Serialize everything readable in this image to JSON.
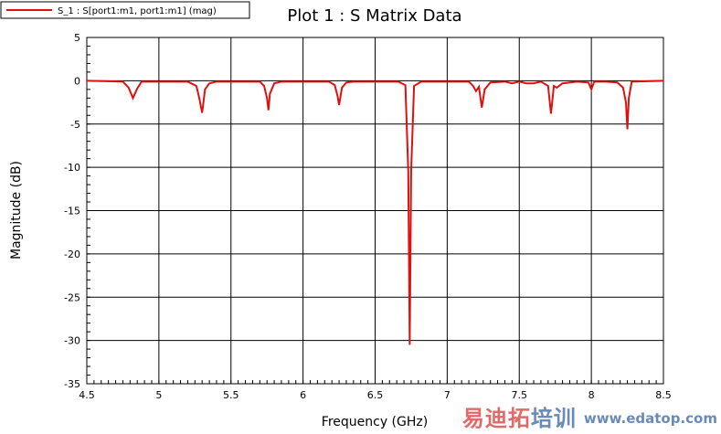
{
  "chart_data": {
    "type": "line",
    "title": "Plot 1 : S Matrix Data",
    "xlabel": "Frequency (GHz)",
    "ylabel": "Magnitude (dB)",
    "xlim": [
      4.5,
      8.5
    ],
    "ylim": [
      -35,
      5
    ],
    "xticks": [
      4.5,
      5,
      5.5,
      6,
      6.5,
      7,
      7.5,
      8,
      8.5
    ],
    "xtick_labels": [
      "4.5",
      "5",
      "5.5",
      "6",
      "6.5",
      "7",
      "7.5",
      "8",
      "8.5"
    ],
    "yticks": [
      5,
      0,
      -5,
      -10,
      -15,
      -20,
      -25,
      -30,
      -35
    ],
    "ytick_labels": [
      "5",
      "0",
      "-5",
      "-10",
      "-15",
      "-20",
      "-25",
      "-30",
      "-35"
    ],
    "grid": true,
    "legend_position": "top-left",
    "series": [
      {
        "name": "S_1 : S[port1:m1, port1:m1] (mag)",
        "color": "#e01010",
        "x": [
          4.5,
          4.75,
          4.79,
          4.82,
          4.85,
          4.88,
          5.2,
          5.26,
          5.28,
          5.3,
          5.32,
          5.35,
          5.4,
          5.7,
          5.73,
          5.75,
          5.76,
          5.77,
          5.8,
          5.85,
          6.18,
          6.22,
          6.24,
          6.25,
          6.27,
          6.3,
          6.35,
          6.66,
          6.71,
          6.73,
          6.735,
          6.74,
          6.745,
          6.75,
          6.77,
          6.82,
          7.15,
          7.18,
          7.2,
          7.22,
          7.24,
          7.26,
          7.3,
          7.4,
          7.45,
          7.5,
          7.55,
          7.6,
          7.65,
          7.7,
          7.72,
          7.74,
          7.76,
          7.8,
          7.9,
          7.98,
          8.0,
          8.02,
          8.1,
          8.18,
          8.22,
          8.24,
          8.25,
          8.26,
          8.28,
          8.5
        ],
        "y": [
          0,
          -0.1,
          -0.8,
          -2.0,
          -0.9,
          -0.1,
          -0.1,
          -0.6,
          -2.0,
          -3.7,
          -1.0,
          -0.3,
          -0.1,
          -0.1,
          -0.6,
          -2.0,
          -3.4,
          -1.5,
          -0.3,
          -0.1,
          -0.1,
          -0.5,
          -1.8,
          -2.8,
          -0.8,
          -0.2,
          -0.1,
          -0.1,
          -0.5,
          -10.5,
          -20.5,
          -30.5,
          -20.5,
          -10.5,
          -0.6,
          -0.1,
          -0.1,
          -0.6,
          -1.2,
          -0.7,
          -3.1,
          -1.0,
          -0.2,
          -0.1,
          -0.3,
          -0.1,
          -0.3,
          -0.3,
          -0.1,
          -0.6,
          -3.8,
          -0.6,
          -0.8,
          -0.3,
          -0.1,
          -0.2,
          -1.0,
          -0.1,
          -0.1,
          -0.2,
          -0.8,
          -2.5,
          -5.6,
          -2.0,
          -0.1,
          0
        ]
      }
    ]
  },
  "watermark": {
    "cn": "易迪拓培训",
    "url": "www.edatop.com"
  }
}
